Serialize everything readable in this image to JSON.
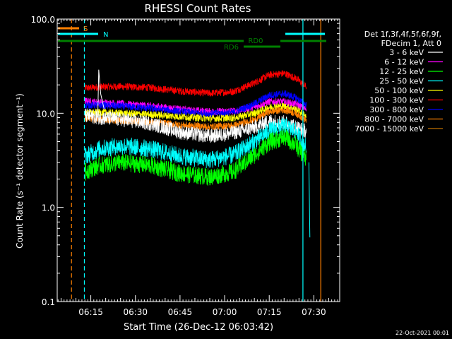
{
  "chart_data": {
    "type": "line",
    "title": "RHESSI Count Rates",
    "xlabel": "Start Time (26-Dec-12 06:03:42)",
    "ylabel": "Count Rate (s⁻¹ detector segment⁻¹)",
    "yscale": "log",
    "ylim": [
      0.1,
      100.0
    ],
    "xlim": [
      "06:03:42",
      "07:38:42"
    ],
    "y_ticks": [
      "0.1",
      "1.0",
      "10.0",
      "100.0"
    ],
    "x_ticks": [
      "06:15",
      "06:30",
      "06:45",
      "07:00",
      "07:15",
      "07:30"
    ],
    "timestamp": "22-Oct-2021 00:01",
    "legend": {
      "placement": "right",
      "header": [
        "Det 1f,3f,4f,5f,6f,9f,",
        "FDecim 1, Att 0"
      ]
    },
    "series": [
      {
        "name": "3 - 6 keV",
        "color": "#ffffff",
        "x": [
          "06:13:00",
          "06:18:00",
          "06:25:00",
          "06:35:00",
          "06:45:00",
          "06:55:00",
          "07:03:00",
          "07:10:00",
          "07:15:00",
          "07:20:00",
          "07:24:00",
          "07:27:30"
        ],
        "values": [
          9.5,
          9.0,
          8.6,
          7.8,
          6.3,
          5.7,
          6.2,
          7.1,
          8.3,
          8.0,
          7.2,
          6.4
        ]
      },
      {
        "name": "6 - 12 keV",
        "color": "#ff00ff",
        "x": [
          "06:13:00",
          "06:18:00",
          "06:25:00",
          "06:35:00",
          "06:45:00",
          "06:55:00",
          "07:03:00",
          "07:10:00",
          "07:15:00",
          "07:20:00",
          "07:24:00",
          "07:27:30"
        ],
        "values": [
          13.5,
          13.0,
          12.6,
          12.0,
          11.0,
          10.4,
          10.5,
          11.6,
          13.3,
          13.2,
          12.5,
          11.0
        ]
      },
      {
        "name": "12 - 25 keV",
        "color": "#00ff00",
        "x": [
          "06:13:00",
          "06:18:00",
          "06:25:00",
          "06:35:00",
          "06:45:00",
          "06:55:00",
          "07:03:00",
          "07:10:00",
          "07:15:00",
          "07:20:00",
          "07:24:00",
          "07:27:30"
        ],
        "values": [
          2.4,
          2.8,
          3.0,
          2.8,
          2.3,
          2.1,
          2.4,
          3.6,
          4.9,
          5.6,
          4.6,
          3.2
        ]
      },
      {
        "name": "25 - 50 keV",
        "color": "#00ffff",
        "x": [
          "06:13:00",
          "06:18:00",
          "06:25:00",
          "06:35:00",
          "06:45:00",
          "06:55:00",
          "07:03:00",
          "07:10:00",
          "07:15:00",
          "07:20:00",
          "07:24:00",
          "07:27:30"
        ],
        "values": [
          3.5,
          4.2,
          4.5,
          4.2,
          3.5,
          3.2,
          3.6,
          5.0,
          6.5,
          7.3,
          6.4,
          4.3
        ]
      },
      {
        "name": "50 - 100 keV",
        "color": "#ffff00",
        "x": [
          "06:13:00",
          "06:18:00",
          "06:25:00",
          "06:35:00",
          "06:45:00",
          "06:55:00",
          "07:03:00",
          "07:10:00",
          "07:15:00",
          "07:20:00",
          "07:24:00",
          "07:27:30"
        ],
        "values": [
          10.0,
          10.2,
          10.0,
          9.7,
          9.2,
          8.8,
          8.9,
          10.0,
          11.6,
          11.9,
          11.0,
          9.3
        ]
      },
      {
        "name": "100 - 300 keV",
        "color": "#ff0000",
        "x": [
          "06:13:00",
          "06:18:00",
          "06:25:00",
          "06:35:00",
          "06:45:00",
          "06:55:00",
          "07:03:00",
          "07:10:00",
          "07:15:00",
          "07:20:00",
          "07:24:00",
          "07:27:30"
        ],
        "values": [
          18.5,
          19.0,
          19.2,
          18.7,
          17.2,
          16.3,
          17.0,
          21.0,
          25.5,
          26.5,
          23.5,
          19.0
        ]
      },
      {
        "name": "300 - 800 keV",
        "color": "#0000ff",
        "x": [
          "06:13:00",
          "06:18:00",
          "06:25:00",
          "06:35:00",
          "06:45:00",
          "06:55:00",
          "07:03:00",
          "07:10:00",
          "07:15:00",
          "07:20:00",
          "07:24:00",
          "07:27:30"
        ],
        "values": [
          12.2,
          12.2,
          11.9,
          11.3,
          10.4,
          9.9,
          10.2,
          12.6,
          15.5,
          16.2,
          14.6,
          12.2
        ]
      },
      {
        "name": "800 - 7000 keV",
        "color": "#ff8000",
        "x": [
          "06:13:00",
          "06:18:00",
          "06:25:00",
          "06:35:00",
          "06:45:00",
          "06:55:00",
          "07:03:00",
          "07:10:00",
          "07:15:00",
          "07:20:00",
          "07:24:00",
          "07:27:30"
        ],
        "values": [
          8.8,
          8.6,
          8.4,
          8.1,
          7.5,
          7.2,
          7.4,
          8.5,
          10.4,
          10.9,
          10.0,
          8.4
        ]
      },
      {
        "name": "7000 - 15000 keV",
        "color": "#c07000",
        "x": [],
        "values": []
      }
    ],
    "state_bars": [
      {
        "label": "S",
        "color": "#ff8000"
      },
      {
        "label": "N",
        "color": "#00ffff"
      },
      {
        "label": "RD0",
        "color": "#008000"
      },
      {
        "label": "RD6",
        "color": "#008000"
      }
    ]
  }
}
